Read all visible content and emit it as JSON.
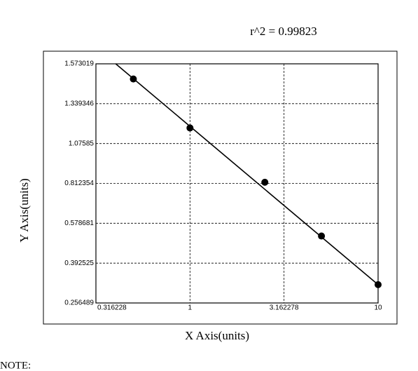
{
  "chart_data": {
    "type": "scatter",
    "annotation": "r^2  =  0.99823",
    "x_label": "X Axis(units)",
    "y_label": "Y Axis(units)",
    "note": "NOTE:",
    "xscale": "log",
    "xlim": [
      0.316228,
      10
    ],
    "xticks": [
      0.316228,
      1,
      3.162278,
      10
    ],
    "ylim": [
      0.256489,
      1.573019
    ],
    "yticks": [
      0.256489,
      0.392525,
      0.578681,
      0.812354,
      1.07585,
      1.339346,
      1.573019
    ],
    "grid": true,
    "series": [
      {
        "x": [
          0.5,
          1,
          2.5,
          5,
          10
        ],
        "values": [
          1.484,
          1.179,
          0.82,
          0.519,
          0.319
        ],
        "color": "#000000"
      }
    ],
    "fit": {
      "x": [
        0.403,
        10
      ],
      "values": [
        1.573019,
        0.319
      ],
      "color": "#000000"
    }
  }
}
